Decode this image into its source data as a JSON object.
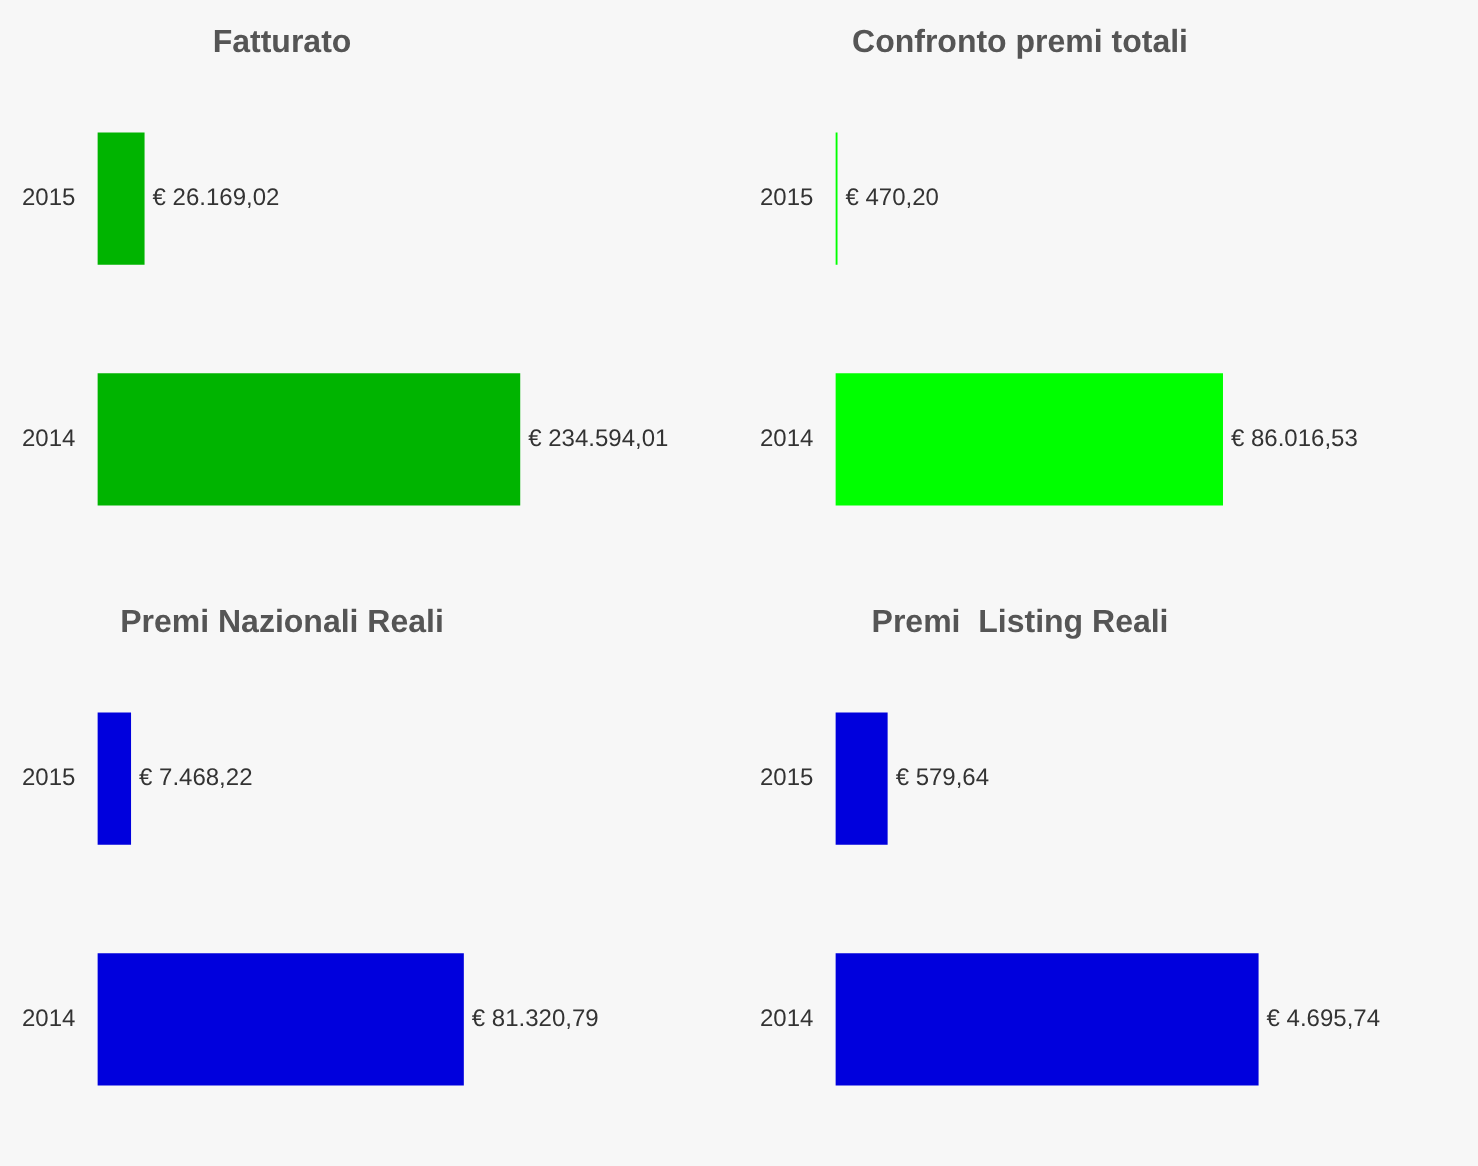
{
  "chart_data": [
    {
      "type": "bar",
      "orientation": "horizontal",
      "title": "Fatturato",
      "categories": [
        "2015",
        "2014"
      ],
      "values": [
        26169.02,
        234594.01
      ],
      "color": "#00b400",
      "value_labels": [
        "€ 26.169,02",
        "€ 234.594,01"
      ],
      "tick_labels": "y"
    },
    {
      "type": "bar",
      "orientation": "horizontal",
      "title": "Confronto premi totali",
      "categories": [
        "2015",
        "2014"
      ],
      "values": [
        470.2,
        86016.53
      ],
      "color": "#00ff00",
      "value_labels": [
        "€ 470,20",
        "€ 86.016,53"
      ],
      "tick_labels": "y"
    },
    {
      "type": "bar",
      "orientation": "horizontal",
      "title": "Premi Nazionali Reali",
      "categories": [
        "2015",
        "2014"
      ],
      "values": [
        7468.22,
        81320.79
      ],
      "color": "#0000dd",
      "value_labels": [
        "€ 7.468,22",
        "€ 81.320,79"
      ],
      "tick_labels": "y"
    },
    {
      "type": "bar",
      "orientation": "horizontal",
      "title": "Premi  Listing Reali",
      "categories": [
        "2015",
        "2014"
      ],
      "values": [
        579.64,
        4695.74
      ],
      "color": "#0000dd",
      "value_labels": [
        "€ 579,64",
        "€ 4.695,74"
      ],
      "tick_labels": "y"
    }
  ]
}
